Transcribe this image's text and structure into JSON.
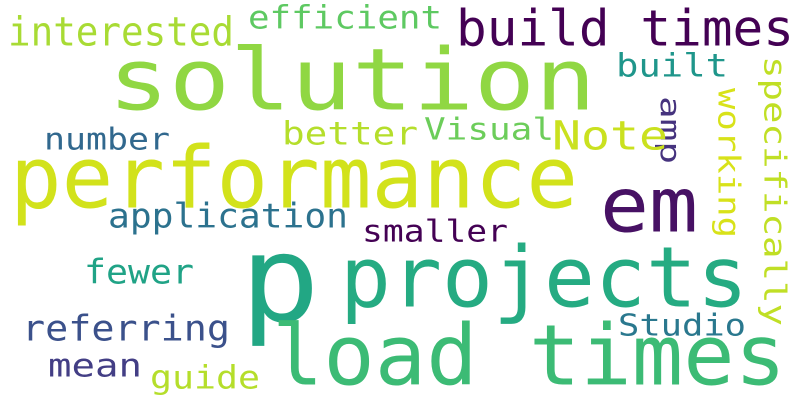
{
  "words": [
    {
      "id": "p",
      "text": "p",
      "color": "#22a784",
      "vertical": false
    },
    {
      "id": "solution",
      "text": "solution",
      "color": "#90d743",
      "vertical": false
    },
    {
      "id": "performance",
      "text": "performance",
      "color": "#d2e21b",
      "vertical": false
    },
    {
      "id": "projects",
      "text": "projects",
      "color": "#25ab82",
      "vertical": false
    },
    {
      "id": "load-times",
      "text": "load times",
      "color": "#3cbb75",
      "vertical": false
    },
    {
      "id": "em",
      "text": "em",
      "color": "#471164",
      "vertical": false
    },
    {
      "id": "build-times",
      "text": "build times",
      "color": "#440154",
      "vertical": false
    },
    {
      "id": "efficient",
      "text": "efficient",
      "color": "#5ec962",
      "vertical": false
    },
    {
      "id": "interested",
      "text": "interested",
      "color": "#a8db34",
      "vertical": false
    },
    {
      "id": "built",
      "text": "built",
      "color": "#1f968b",
      "vertical": false
    },
    {
      "id": "specifically",
      "text": "specifically",
      "color": "#c0df25",
      "vertical": true
    },
    {
      "id": "working",
      "text": "working",
      "color": "#d8e219",
      "vertical": true
    },
    {
      "id": "amp",
      "text": "amp",
      "color": "#46337e",
      "vertical": true
    },
    {
      "id": "note",
      "text": "Note",
      "color": "#cae11f",
      "vertical": false
    },
    {
      "id": "visual",
      "text": "Visual",
      "color": "#6ccd5a",
      "vertical": false
    },
    {
      "id": "better",
      "text": "better",
      "color": "#b5de2b",
      "vertical": false
    },
    {
      "id": "number",
      "text": "number",
      "color": "#31688e",
      "vertical": false
    },
    {
      "id": "application",
      "text": "application",
      "color": "#2c728e",
      "vertical": false
    },
    {
      "id": "smaller",
      "text": "smaller",
      "color": "#440154",
      "vertical": false
    },
    {
      "id": "fewer",
      "text": "fewer",
      "color": "#20a386",
      "vertical": false
    },
    {
      "id": "referring",
      "text": "referring",
      "color": "#3b518b",
      "vertical": false
    },
    {
      "id": "studio",
      "text": "Studio",
      "color": "#2a788e",
      "vertical": false
    },
    {
      "id": "mean",
      "text": "mean",
      "color": "#433e85",
      "vertical": false
    },
    {
      "id": "guide",
      "text": "guide",
      "color": "#b5de2b",
      "vertical": false
    }
  ]
}
